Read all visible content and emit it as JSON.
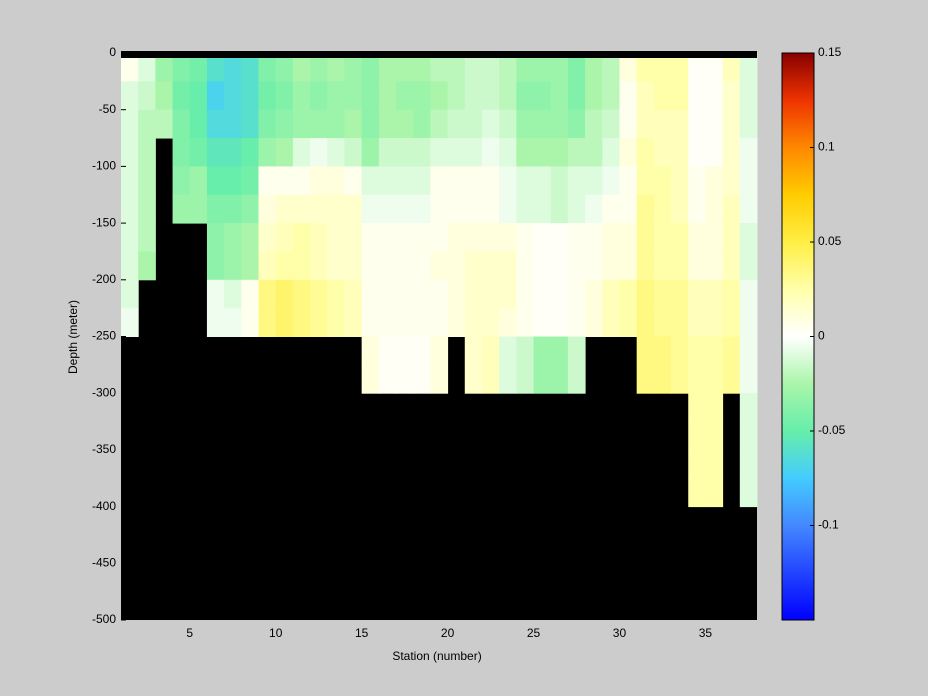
{
  "chart_data": {
    "type": "heatmap",
    "xlabel": "Station (number)",
    "ylabel": "Depth (meter)",
    "xlim": [
      1,
      38
    ],
    "xticks": [
      5,
      10,
      15,
      20,
      25,
      30,
      35
    ],
    "ylim": [
      -500,
      0
    ],
    "yticks": [
      -500,
      -450,
      -400,
      -350,
      -300,
      -250,
      -200,
      -150,
      -100,
      -50,
      0
    ],
    "clim": [
      -0.15,
      0.15
    ],
    "cticks": [
      -0.1,
      -0.05,
      0,
      0.05,
      0.1,
      0.15
    ],
    "colormap": [
      "#0000ff",
      "#2244ff",
      "#4488ff",
      "#44ccff",
      "#66eeaa",
      "#aaf5aa",
      "#ffffff",
      "#ffffaa",
      "#ffee44",
      "#ffcc00",
      "#ff8800",
      "#ee3300",
      "#880000"
    ],
    "missing_color": "#000000",
    "x_edges": [
      1,
      2,
      3,
      4,
      5,
      6,
      7,
      8,
      9,
      10,
      11,
      12,
      13,
      14,
      15,
      16,
      17,
      18,
      19,
      20,
      21,
      22,
      23,
      24,
      25,
      26,
      27,
      28,
      29,
      30,
      31,
      32,
      33,
      34,
      35,
      36,
      37,
      38
    ],
    "y_edges": [
      0,
      -25,
      -50,
      -75,
      -100,
      -125,
      -150,
      -175,
      -200,
      -225,
      -250,
      -275,
      -300,
      -325,
      -350,
      -375,
      -400
    ],
    "z": [
      [
        0.005,
        -0.01,
        -0.01,
        -0.01,
        -0.01,
        -0.01,
        -0.01,
        -0.01,
        -0.01,
        -0.005,
        null,
        null,
        null,
        null,
        null,
        null
      ],
      [
        -0.01,
        -0.015,
        -0.02,
        -0.02,
        -0.02,
        -0.02,
        -0.02,
        -0.025,
        null,
        null,
        null,
        null,
        null,
        null,
        null,
        null
      ],
      [
        -0.03,
        -0.025,
        -0.02,
        null,
        null,
        null,
        null,
        null,
        null,
        null,
        null,
        null,
        null,
        null,
        null,
        null
      ],
      [
        -0.04,
        -0.045,
        -0.04,
        -0.04,
        -0.035,
        -0.03,
        null,
        null,
        null,
        null,
        null,
        null,
        null,
        null,
        null,
        null
      ],
      [
        -0.045,
        -0.05,
        -0.05,
        -0.045,
        -0.03,
        -0.03,
        null,
        null,
        null,
        null,
        null,
        null,
        null,
        null,
        null,
        null
      ],
      [
        -0.06,
        -0.07,
        -0.065,
        -0.055,
        -0.05,
        -0.04,
        -0.035,
        -0.035,
        -0.005,
        -0.005,
        null,
        null,
        null,
        null,
        null,
        null
      ],
      [
        -0.065,
        -0.065,
        -0.065,
        -0.055,
        -0.05,
        -0.04,
        -0.03,
        -0.03,
        -0.01,
        -0.005,
        null,
        null,
        null,
        null,
        null,
        null
      ],
      [
        -0.06,
        -0.06,
        -0.06,
        -0.05,
        -0.045,
        -0.035,
        -0.025,
        -0.025,
        0.005,
        0.005,
        null,
        null,
        null,
        null,
        null,
        null
      ],
      [
        -0.04,
        -0.045,
        -0.04,
        -0.03,
        0.005,
        0.01,
        0.015,
        0.02,
        0.035,
        0.035,
        null,
        null,
        null,
        null,
        null,
        null
      ],
      [
        -0.035,
        -0.04,
        -0.035,
        -0.025,
        0.005,
        0.015,
        0.02,
        0.025,
        0.04,
        0.04,
        null,
        null,
        null,
        null,
        null,
        null
      ],
      [
        -0.025,
        -0.03,
        -0.03,
        -0.01,
        0.005,
        0.015,
        0.025,
        0.025,
        0.035,
        0.035,
        null,
        null,
        null,
        null,
        null,
        null
      ],
      [
        -0.03,
        -0.035,
        -0.03,
        -0.005,
        0.01,
        0.015,
        0.02,
        0.02,
        0.03,
        0.03,
        null,
        null,
        null,
        null,
        null,
        null
      ],
      [
        -0.025,
        -0.03,
        -0.03,
        -0.01,
        0.01,
        0.015,
        0.015,
        0.015,
        0.025,
        0.025,
        null,
        null,
        null,
        null,
        null,
        null
      ],
      [
        -0.03,
        -0.03,
        -0.025,
        -0.015,
        0.005,
        0.015,
        0.015,
        0.015,
        0.02,
        0.02,
        null,
        null,
        null,
        null,
        null,
        null
      ],
      [
        -0.035,
        -0.035,
        -0.035,
        -0.03,
        -0.01,
        -0.005,
        0.005,
        0.005,
        0.005,
        0.005,
        0.01,
        0.01,
        null,
        null,
        null,
        null
      ],
      [
        -0.025,
        -0.025,
        -0.025,
        -0.015,
        -0.01,
        -0.005,
        0.005,
        0.005,
        0.005,
        0.005,
        0.003,
        0.003,
        null,
        null,
        null,
        null
      ],
      [
        -0.025,
        -0.03,
        -0.025,
        -0.015,
        -0.01,
        -0.005,
        0.005,
        0.005,
        0.005,
        0.005,
        0.003,
        0.003,
        null,
        null,
        null,
        null
      ],
      [
        -0.025,
        -0.03,
        -0.03,
        -0.015,
        -0.01,
        -0.005,
        0.005,
        0.005,
        0.005,
        0.005,
        0.003,
        0.003,
        null,
        null,
        null,
        null
      ],
      [
        -0.02,
        -0.025,
        -0.02,
        -0.01,
        0.005,
        0.005,
        0.005,
        0.01,
        0.005,
        0.005,
        0.01,
        0.01,
        null,
        null,
        null,
        null
      ],
      [
        -0.02,
        -0.02,
        -0.015,
        -0.01,
        0.005,
        0.005,
        0.01,
        0.01,
        0.01,
        0.01,
        null,
        null,
        null,
        null,
        null,
        null
      ],
      [
        -0.015,
        -0.015,
        -0.015,
        -0.01,
        0.005,
        0.005,
        0.01,
        0.015,
        0.015,
        0.015,
        0.015,
        0.015,
        null,
        null,
        null,
        null
      ],
      [
        -0.015,
        -0.015,
        -0.01,
        -0.005,
        0.005,
        0.005,
        0.01,
        0.015,
        0.015,
        0.015,
        0.02,
        0.02,
        null,
        null,
        null,
        null
      ],
      [
        -0.02,
        -0.02,
        -0.015,
        -0.01,
        -0.005,
        -0.005,
        0.01,
        0.015,
        0.015,
        0.01,
        -0.01,
        -0.01,
        null,
        null,
        null,
        null
      ],
      [
        -0.03,
        -0.035,
        -0.03,
        -0.025,
        -0.01,
        -0.01,
        0.005,
        0.005,
        0.005,
        0.005,
        -0.015,
        -0.015,
        null,
        null,
        null,
        null
      ],
      [
        -0.03,
        -0.035,
        -0.03,
        -0.025,
        -0.01,
        -0.01,
        0.002,
        0.002,
        0.002,
        0.002,
        -0.03,
        -0.03,
        null,
        null,
        null,
        null
      ],
      [
        -0.03,
        -0.03,
        -0.03,
        -0.025,
        -0.015,
        -0.015,
        0.002,
        0.002,
        0.002,
        0.002,
        -0.03,
        -0.03,
        null,
        null,
        null,
        null
      ],
      [
        -0.04,
        -0.04,
        -0.035,
        -0.02,
        -0.01,
        -0.01,
        0.005,
        0.005,
        0.005,
        0.005,
        -0.015,
        -0.015,
        null,
        null,
        null,
        null
      ],
      [
        -0.025,
        -0.025,
        -0.02,
        -0.02,
        -0.01,
        -0.005,
        0.005,
        0.005,
        0.01,
        0.01,
        null,
        null,
        null,
        null,
        null,
        null
      ],
      [
        -0.02,
        -0.02,
        -0.015,
        -0.01,
        -0.005,
        0.005,
        0.01,
        0.01,
        0.02,
        0.02,
        null,
        null,
        null,
        null,
        null,
        null
      ],
      [
        0.01,
        0.005,
        0.005,
        0.01,
        0.005,
        0.005,
        0.01,
        0.01,
        0.025,
        0.025,
        null,
        null,
        null,
        null,
        null,
        null
      ],
      [
        0.025,
        0.02,
        0.02,
        0.025,
        0.025,
        0.03,
        0.03,
        0.03,
        0.035,
        0.035,
        0.035,
        0.035,
        null,
        null,
        null,
        null
      ],
      [
        0.025,
        0.025,
        0.02,
        0.02,
        0.025,
        0.025,
        0.025,
        0.025,
        0.03,
        0.03,
        0.035,
        0.035,
        null,
        null,
        null,
        null
      ],
      [
        0.025,
        0.025,
        0.02,
        0.02,
        0.02,
        0.02,
        0.025,
        0.025,
        0.03,
        0.03,
        0.03,
        0.03,
        null,
        null,
        null,
        null
      ],
      [
        0.002,
        0.002,
        0.002,
        0.002,
        0.005,
        0.005,
        0.01,
        0.01,
        0.02,
        0.02,
        0.025,
        0.025,
        0.025,
        0.025,
        0.025,
        0.025
      ],
      [
        0.002,
        0.002,
        0.002,
        0.002,
        0.01,
        0.01,
        0.01,
        0.01,
        0.02,
        0.02,
        0.025,
        0.025,
        0.025,
        0.025,
        0.025,
        0.025
      ],
      [
        0.02,
        0.015,
        0.015,
        0.015,
        0.015,
        0.02,
        0.02,
        0.02,
        0.025,
        0.025,
        0.03,
        0.03,
        null,
        null,
        null,
        null
      ],
      [
        -0.01,
        -0.01,
        -0.01,
        -0.005,
        -0.005,
        -0.005,
        -0.01,
        -0.01,
        -0.005,
        -0.005,
        -0.005,
        -0.005,
        -0.01,
        -0.01,
        -0.01,
        -0.01
      ]
    ]
  }
}
